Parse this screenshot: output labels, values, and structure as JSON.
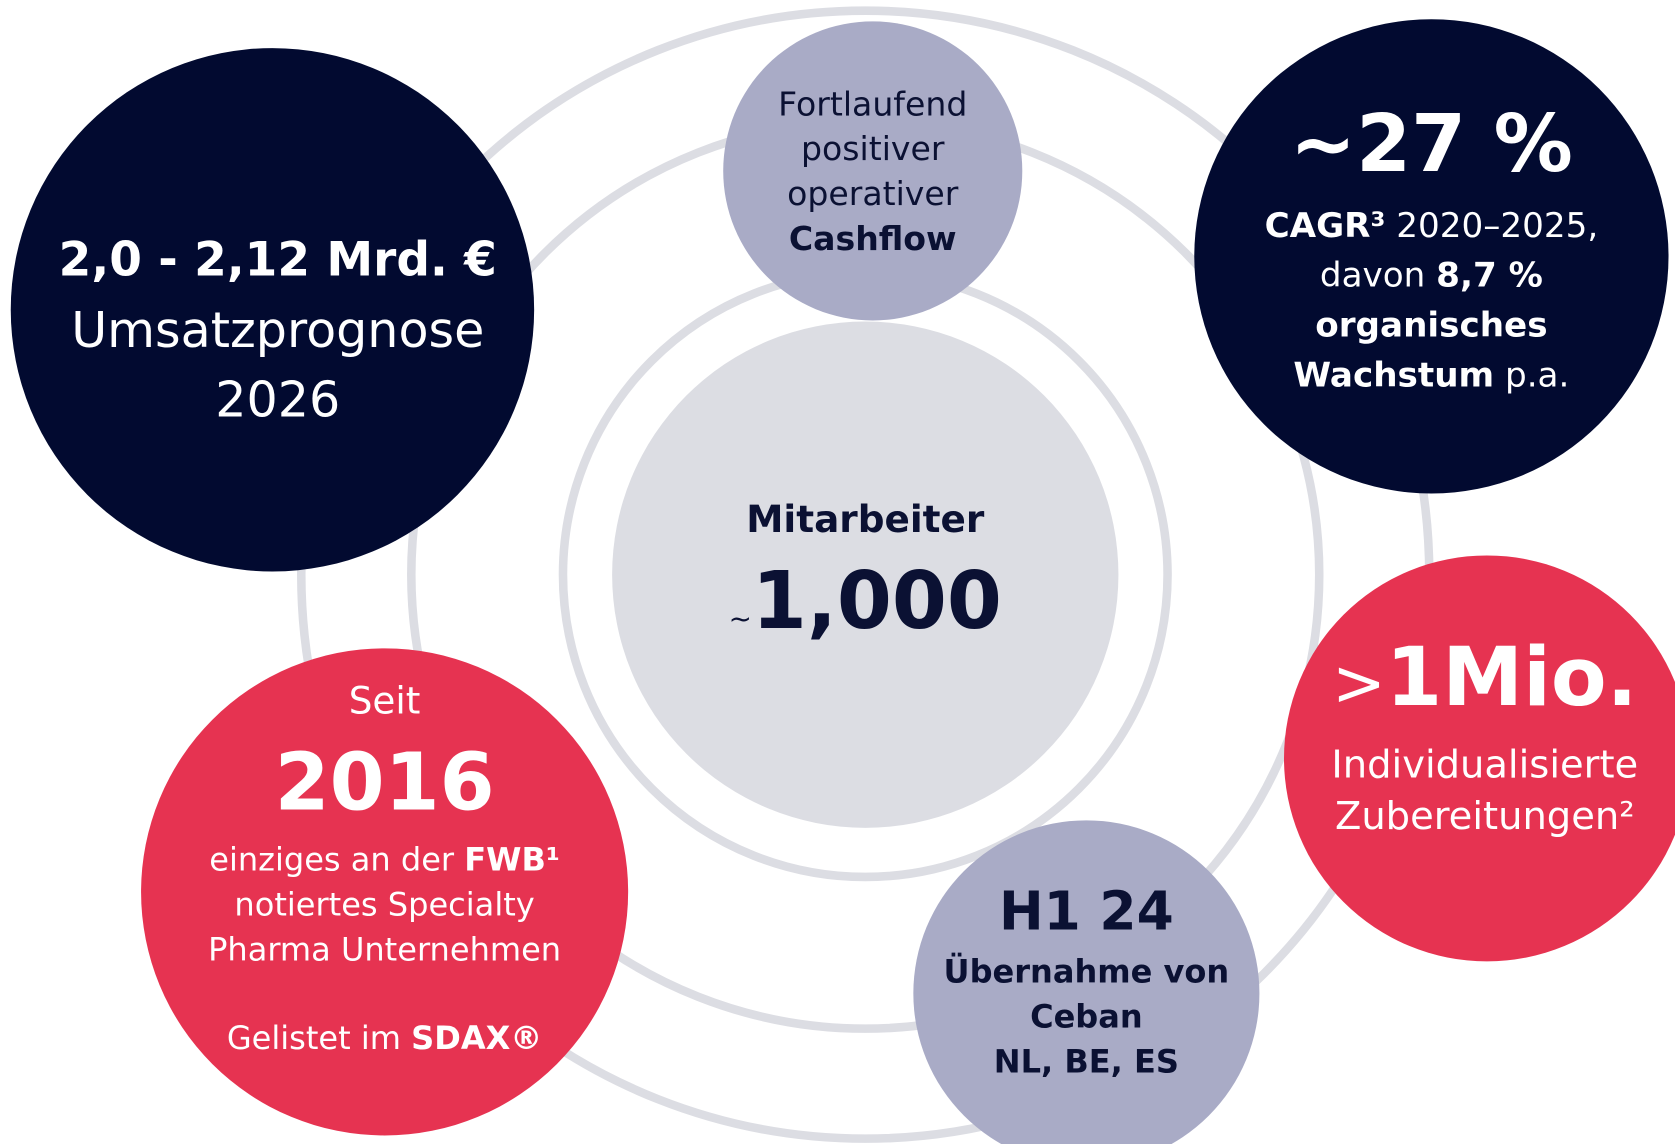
{
  "revenue": {
    "value": "2,0 - 2,12 Mrd. €",
    "label": "Umsatzprognose",
    "year": "2026"
  },
  "cashflow": {
    "lines": [
      "Fortlaufend",
      "positiver",
      "operativer"
    ],
    "bold": "Cashflow"
  },
  "growth": {
    "value": "~27 %",
    "cagr": "CAGR³",
    "period": " 2020–2025,",
    "davon": "davon ",
    "organic": "8,7 %",
    "organic_label": "organisches",
    "wachstum": "Wachstum",
    "pa": " p.a."
  },
  "employees": {
    "label": "Mitarbeiter",
    "approx": "~",
    "value": "1,000"
  },
  "preparations": {
    "prefix": ">",
    "value": "1Mio.",
    "lines": [
      "Individualisierte",
      "Zubereitungen²"
    ]
  },
  "listing": {
    "since": "Seit",
    "year": "2016",
    "line1": "einziges an der ",
    "fwb": "FWB¹",
    "line2": "notiertes Specialty",
    "line3": "Pharma Unternehmen",
    "sdax_pre": "Gelistet im ",
    "sdax": "SDAX®"
  },
  "acquisition": {
    "title": "H1 24",
    "lines": [
      "Übernahme von",
      "Ceban",
      "NL, BE, ES"
    ]
  }
}
